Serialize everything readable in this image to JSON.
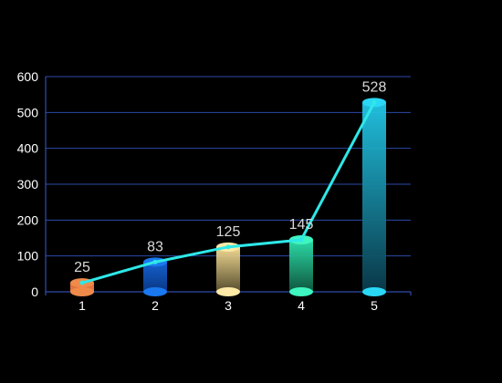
{
  "chart_data": {
    "type": "bar",
    "categories": [
      "1",
      "2",
      "3",
      "4",
      "5"
    ],
    "values": [
      25,
      83,
      125,
      145,
      528
    ],
    "line_values": [
      25,
      83,
      125,
      145,
      528
    ],
    "ylim": [
      0,
      600
    ],
    "yticks": [
      "0",
      "100",
      "200",
      "300",
      "400",
      "500",
      "600"
    ],
    "grid": true,
    "bar_style": "cylinder",
    "bar_colors": [
      {
        "top": "#ee7a3e",
        "bottom": "#ee7a3e",
        "cap": "#f08a4a"
      },
      {
        "top": "#1565d8",
        "bottom": "#0a3a8a",
        "cap": "#1a78f0"
      },
      {
        "top": "#fde39a",
        "bottom": "#5a5130",
        "cap": "#ffe9a6"
      },
      {
        "top": "#2ee6b0",
        "bottom": "#0f5a40",
        "cap": "#3ff5c0"
      },
      {
        "top": "#22c8e8",
        "bottom": "#0a3a4a",
        "cap": "#2ad8f5"
      }
    ],
    "line_color": "#2ee8e8",
    "grid_color": "#2a4aa8",
    "axis_color": "#3a5bd0"
  }
}
